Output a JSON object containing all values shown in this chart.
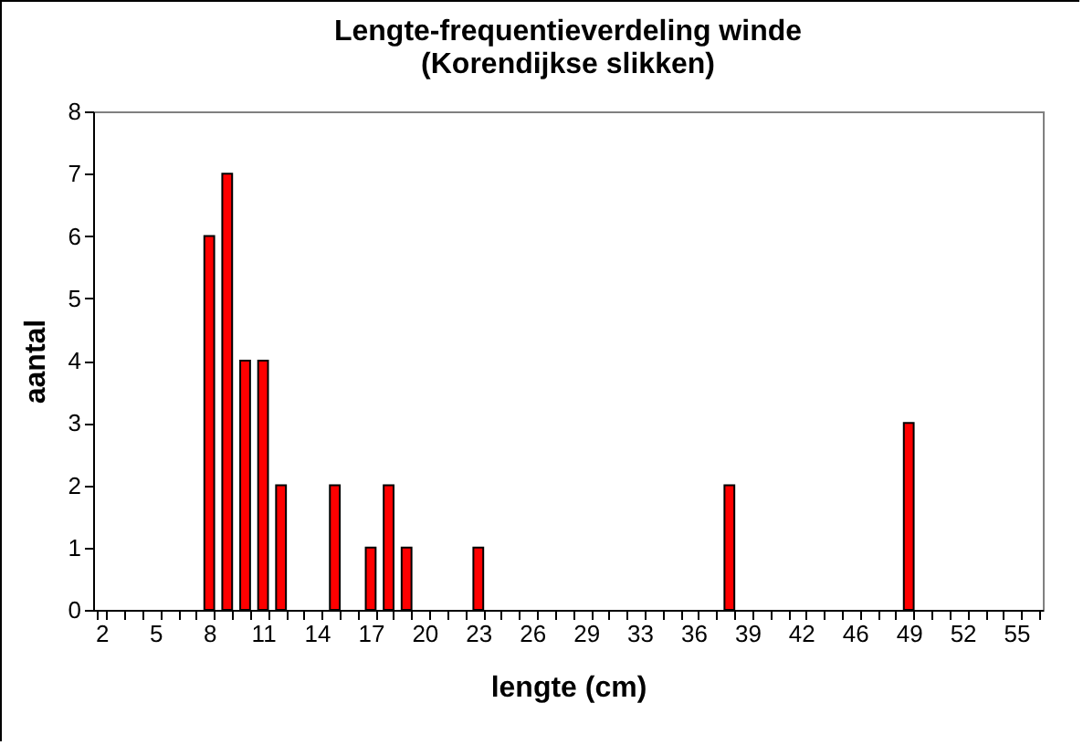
{
  "chart_data": {
    "type": "bar",
    "title": "Lengte-frequentieverdeling winde",
    "subtitle": "(Korendijkse slikken)",
    "xlabel": "lengte (cm)",
    "ylabel": "aantal",
    "categories": [
      "2",
      null,
      null,
      "5",
      null,
      null,
      "8",
      null,
      null,
      "11",
      null,
      null,
      "14",
      null,
      null,
      "17",
      null,
      null,
      "20",
      null,
      null,
      "23",
      null,
      null,
      "26",
      null,
      null,
      "29",
      null,
      null,
      "33",
      null,
      null,
      "36",
      null,
      null,
      "39",
      null,
      null,
      "42",
      null,
      null,
      "46",
      null,
      null,
      "49",
      null,
      null,
      "52",
      null,
      null,
      "55",
      null
    ],
    "values": [
      0,
      0,
      0,
      0,
      0,
      0,
      6,
      7,
      4,
      4,
      2,
      0,
      0,
      2,
      0,
      1,
      2,
      1,
      0,
      0,
      0,
      1,
      0,
      0,
      0,
      0,
      0,
      0,
      0,
      0,
      0,
      0,
      0,
      0,
      0,
      2,
      0,
      0,
      0,
      0,
      0,
      0,
      0,
      0,
      0,
      3,
      0,
      0,
      0,
      0,
      0,
      0,
      0
    ],
    "color": "#ff0000",
    "ylim": [
      0,
      8
    ],
    "yticks": [
      0,
      1,
      2,
      3,
      4,
      5,
      6,
      7,
      8
    ],
    "grid": false
  }
}
